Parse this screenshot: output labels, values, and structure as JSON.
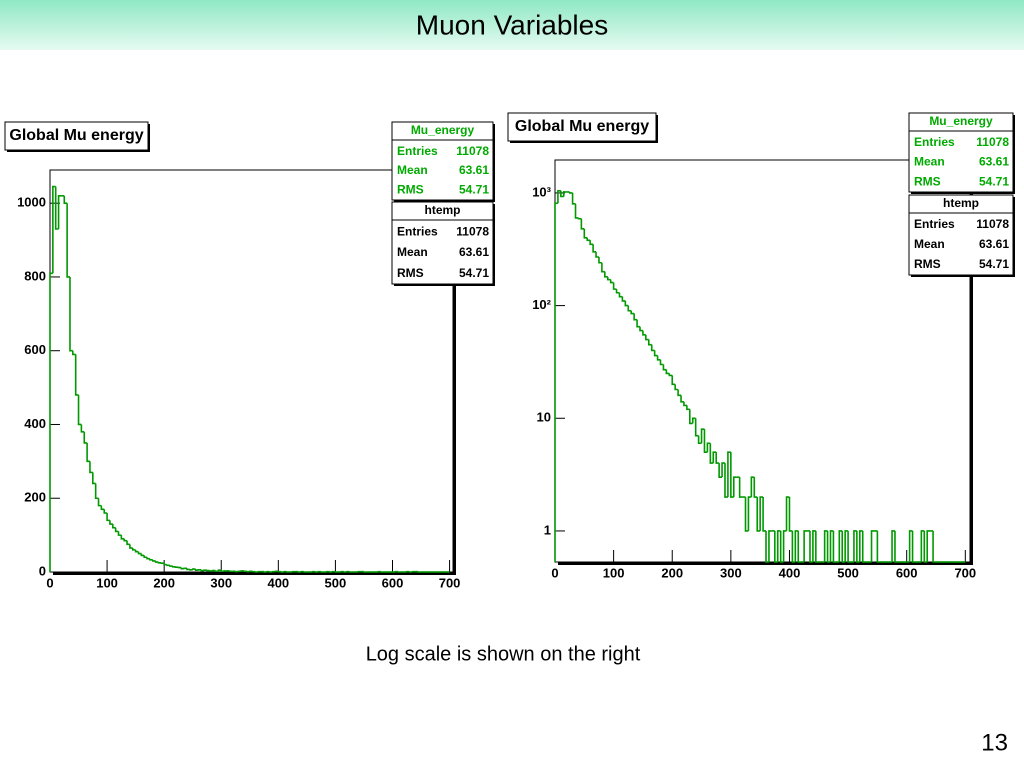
{
  "slide": {
    "title": "Muon Variables",
    "caption": "Log scale is shown on the right",
    "page_number": "13"
  },
  "chart_data": [
    {
      "type": "histogram",
      "title": "Global Mu energy",
      "color": "#009900",
      "log_y": false,
      "bins": [
        0,
        5,
        10,
        15,
        20,
        25,
        30,
        35,
        40,
        45,
        50,
        55,
        60,
        65,
        70,
        75,
        80,
        85,
        90,
        95,
        100,
        105,
        110,
        115,
        120,
        125,
        130,
        135,
        140,
        145,
        150,
        155,
        160,
        165,
        170,
        175,
        180,
        185,
        190,
        195,
        200,
        205,
        210,
        215,
        220,
        225,
        230,
        235,
        240,
        245,
        250,
        255,
        260,
        265,
        270,
        275,
        280,
        285,
        290,
        295,
        300,
        305,
        310,
        315,
        320,
        325,
        330,
        335,
        340,
        345,
        350,
        355,
        360,
        365,
        370,
        375,
        380,
        385,
        390,
        395,
        400,
        405,
        410,
        415,
        420,
        425,
        430,
        435,
        440,
        445,
        450,
        455,
        460,
        465,
        470,
        475,
        480,
        485,
        490,
        495,
        500,
        505,
        510,
        515,
        520,
        525,
        530,
        535,
        540,
        545,
        550,
        555,
        560,
        565,
        570,
        575,
        580,
        585,
        590,
        595,
        600,
        605,
        610,
        615,
        620,
        625,
        630,
        635,
        640,
        645,
        650,
        655,
        660,
        665,
        670,
        675,
        680,
        685,
        690,
        695,
        700
      ],
      "values": [
        810,
        1045,
        930,
        1020,
        1020,
        1000,
        800,
        600,
        590,
        480,
        400,
        380,
        350,
        300,
        270,
        240,
        200,
        180,
        170,
        160,
        140,
        130,
        120,
        110,
        100,
        90,
        85,
        75,
        65,
        60,
        55,
        50,
        45,
        40,
        36,
        33,
        30,
        27,
        25,
        24,
        20,
        18,
        16,
        14,
        13,
        12,
        9,
        10,
        7,
        6,
        8,
        5,
        6,
        4,
        5,
        4,
        3,
        4,
        2,
        5,
        2,
        3,
        3,
        2,
        2,
        1,
        2,
        3,
        2,
        1,
        2,
        1,
        0,
        1,
        1,
        0,
        1,
        0,
        1,
        2,
        1,
        0,
        1,
        0,
        0,
        1,
        1,
        0,
        1,
        0,
        0,
        0,
        1,
        0,
        1,
        0,
        0,
        1,
        0,
        1,
        0,
        0,
        1,
        0,
        1,
        0,
        0,
        0,
        1,
        1,
        0,
        0,
        0,
        0,
        0,
        1,
        0,
        0,
        0,
        0,
        0,
        1,
        0,
        0,
        0,
        1,
        0,
        1,
        1,
        0,
        0,
        0,
        0,
        0,
        0,
        0,
        0,
        0,
        0,
        0
      ],
      "xlim": [
        0,
        706
      ],
      "xticks": [
        0,
        100,
        200,
        300,
        400,
        500,
        600,
        700
      ],
      "ylim": [
        0,
        1090
      ],
      "yticks": [
        0,
        200,
        400,
        600,
        800,
        1000
      ],
      "stats": [
        {
          "name": "Mu_energy",
          "color": "#00aa00",
          "rows": [
            {
              "label": "Entries",
              "value": 11078
            },
            {
              "label": "Mean",
              "value": 63.61
            },
            {
              "label": "RMS",
              "value": 54.71
            }
          ]
        },
        {
          "name": "htemp",
          "color": "#000000",
          "rows": [
            {
              "label": "Entries",
              "value": 11078
            },
            {
              "label": "Mean",
              "value": 63.61
            },
            {
              "label": "RMS",
              "value": 54.71
            }
          ]
        }
      ]
    },
    {
      "type": "histogram",
      "title": "Global Mu energy",
      "color": "#009900",
      "log_y": true,
      "bins": [
        0,
        5,
        10,
        15,
        20,
        25,
        30,
        35,
        40,
        45,
        50,
        55,
        60,
        65,
        70,
        75,
        80,
        85,
        90,
        95,
        100,
        105,
        110,
        115,
        120,
        125,
        130,
        135,
        140,
        145,
        150,
        155,
        160,
        165,
        170,
        175,
        180,
        185,
        190,
        195,
        200,
        205,
        210,
        215,
        220,
        225,
        230,
        235,
        240,
        245,
        250,
        255,
        260,
        265,
        270,
        275,
        280,
        285,
        290,
        295,
        300,
        305,
        310,
        315,
        320,
        325,
        330,
        335,
        340,
        345,
        350,
        355,
        360,
        365,
        370,
        375,
        380,
        385,
        390,
        395,
        400,
        405,
        410,
        415,
        420,
        425,
        430,
        435,
        440,
        445,
        450,
        455,
        460,
        465,
        470,
        475,
        480,
        485,
        490,
        495,
        500,
        505,
        510,
        515,
        520,
        525,
        530,
        535,
        540,
        545,
        550,
        555,
        560,
        565,
        570,
        575,
        580,
        585,
        590,
        595,
        600,
        605,
        610,
        615,
        620,
        625,
        630,
        635,
        640,
        645,
        650,
        655,
        660,
        665,
        670,
        675,
        680,
        685,
        690,
        695,
        700
      ],
      "values": [
        810,
        1045,
        930,
        1020,
        1020,
        1000,
        800,
        600,
        590,
        480,
        400,
        380,
        350,
        300,
        270,
        240,
        200,
        180,
        170,
        160,
        140,
        130,
        120,
        110,
        100,
        90,
        85,
        75,
        65,
        60,
        55,
        50,
        45,
        40,
        36,
        33,
        30,
        27,
        25,
        24,
        20,
        18,
        16,
        14,
        13,
        12,
        9,
        10,
        7,
        6,
        8,
        5,
        6,
        4,
        5,
        4,
        3,
        4,
        2,
        5,
        2,
        3,
        3,
        2,
        2,
        1,
        2,
        3,
        2,
        1,
        2,
        1,
        0,
        1,
        1,
        0,
        1,
        0,
        1,
        2,
        1,
        0,
        1,
        0,
        0,
        1,
        1,
        0,
        1,
        0,
        0,
        0,
        1,
        0,
        1,
        0,
        0,
        1,
        0,
        1,
        0,
        0,
        1,
        0,
        1,
        0,
        0,
        0,
        1,
        1,
        0,
        0,
        0,
        0,
        0,
        1,
        0,
        0,
        0,
        0,
        0,
        1,
        0,
        0,
        0,
        1,
        0,
        1,
        1,
        0,
        0,
        0,
        0,
        0,
        0,
        0,
        0,
        0,
        0,
        0
      ],
      "xlim": [
        0,
        708
      ],
      "xticks": [
        0,
        100,
        200,
        300,
        400,
        500,
        600,
        700
      ],
      "ylim": [
        0.53,
        1960
      ],
      "yticks": [
        1,
        10,
        {
          "value": 100,
          "label": "10²"
        },
        {
          "value": 1000,
          "label": "10³"
        }
      ],
      "stats": [
        {
          "name": "Mu_energy",
          "color": "#00aa00",
          "rows": [
            {
              "label": "Entries",
              "value": 11078
            },
            {
              "label": "Mean",
              "value": 63.61
            },
            {
              "label": "RMS",
              "value": 54.71
            }
          ]
        },
        {
          "name": "htemp",
          "color": "#000000",
          "rows": [
            {
              "label": "Entries",
              "value": 11078
            },
            {
              "label": "Mean",
              "value": 63.61
            },
            {
              "label": "RMS",
              "value": 54.71
            }
          ]
        }
      ]
    }
  ]
}
